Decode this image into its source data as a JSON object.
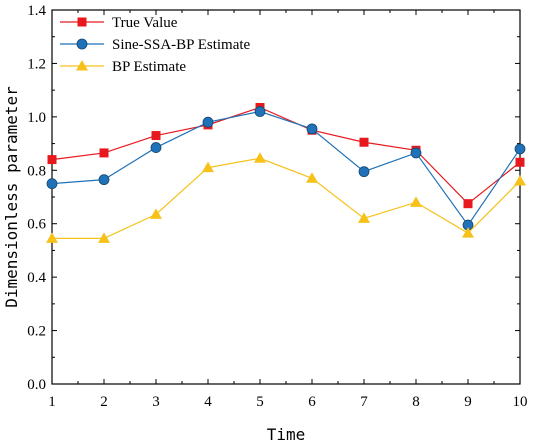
{
  "chart_data": {
    "type": "line",
    "title": "",
    "xlabel": "Time",
    "ylabel": "Dimensionless parameter",
    "x": [
      1,
      2,
      3,
      4,
      5,
      6,
      7,
      8,
      9,
      10
    ],
    "xlim": [
      1,
      10
    ],
    "ylim": [
      0.0,
      1.4
    ],
    "xticks": [
      "1",
      "2",
      "3",
      "4",
      "5",
      "6",
      "7",
      "8",
      "9",
      "10"
    ],
    "yticks": [
      "0.0",
      "0.2",
      "0.4",
      "0.6",
      "0.8",
      "1.0",
      "1.2",
      "1.4"
    ],
    "grid": false,
    "legend_position": "top-left",
    "series": [
      {
        "name": "True Value",
        "marker": "square",
        "color": "#e8191e",
        "values": [
          0.84,
          0.865,
          0.93,
          0.97,
          1.035,
          0.95,
          0.905,
          0.875,
          0.675,
          0.83
        ]
      },
      {
        "name": "Sine-SSA-BP Estimate",
        "marker": "circle",
        "color": "#1f72b8",
        "values": [
          0.75,
          0.765,
          0.885,
          0.98,
          1.02,
          0.955,
          0.795,
          0.865,
          0.595,
          0.88
        ]
      },
      {
        "name": "BP Estimate",
        "marker": "triangle",
        "color": "#f6c21a",
        "values": [
          0.545,
          0.545,
          0.635,
          0.81,
          0.845,
          0.77,
          0.62,
          0.68,
          0.565,
          0.76
        ]
      }
    ]
  }
}
